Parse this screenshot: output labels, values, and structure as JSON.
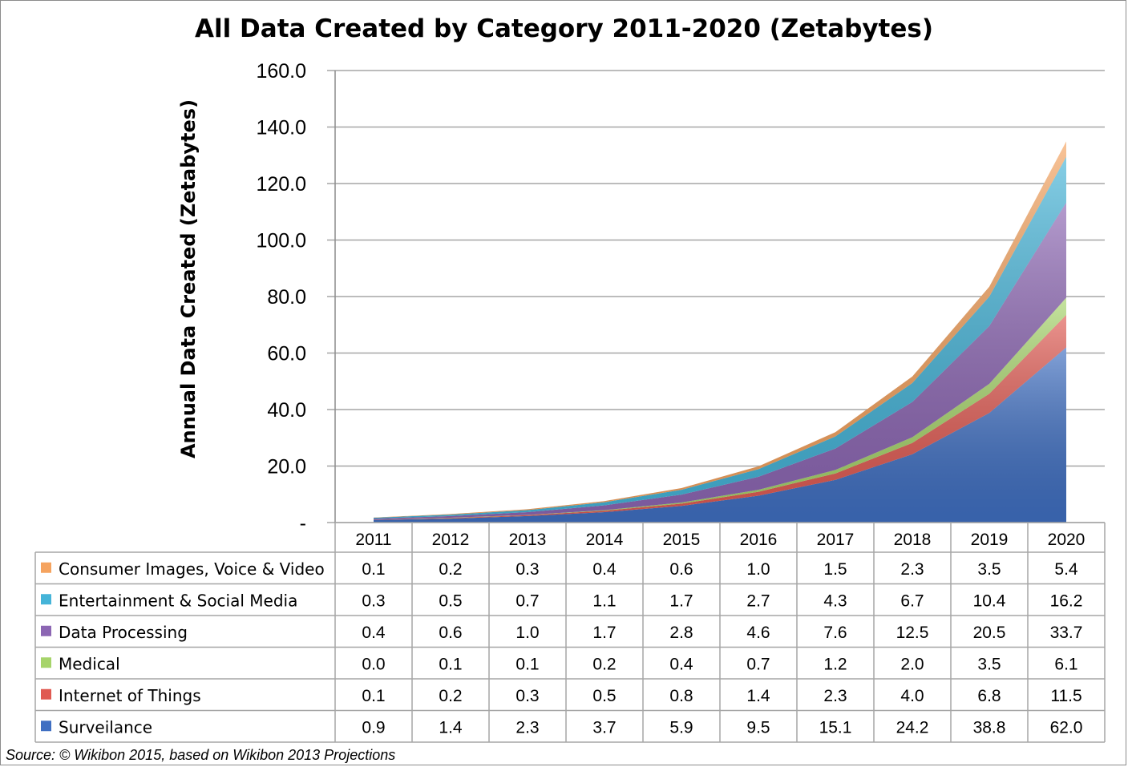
{
  "chart_data": {
    "type": "area",
    "stacked": true,
    "title": "All Data Created by Category 2011-2020 (Zetabytes)",
    "ylabel": "Annual Data Created (Zetabytes)",
    "xlabel": "",
    "categories": [
      "2011",
      "2012",
      "2013",
      "2014",
      "2015",
      "2016",
      "2017",
      "2018",
      "2019",
      "2020"
    ],
    "ylim": [
      0,
      160
    ],
    "yticks": [
      "-",
      "20.0",
      "40.0",
      "60.0",
      "80.0",
      "100.0",
      "120.0",
      "140.0",
      "160.0"
    ],
    "grid": true,
    "legend": "data-table",
    "series": [
      {
        "name": "Surveilance",
        "color": "#3f6fc2",
        "values": [
          0.9,
          1.4,
          2.3,
          3.7,
          5.9,
          9.5,
          15.1,
          24.2,
          38.8,
          62.0
        ],
        "labels": [
          "0.9",
          "1.4",
          "2.3",
          "3.7",
          "5.9",
          "9.5",
          "15.1",
          "24.2",
          "38.8",
          "62.0"
        ]
      },
      {
        "name": "Internet of Things",
        "color": "#e05a52",
        "values": [
          0.1,
          0.2,
          0.3,
          0.5,
          0.8,
          1.4,
          2.3,
          4.0,
          6.8,
          11.5
        ],
        "labels": [
          "0.1",
          "0.2",
          "0.3",
          "0.5",
          "0.8",
          "1.4",
          "2.3",
          "4.0",
          "6.8",
          "11.5"
        ]
      },
      {
        "name": "Medical",
        "color": "#a6d46a",
        "values": [
          0.0,
          0.1,
          0.1,
          0.2,
          0.4,
          0.7,
          1.2,
          2.0,
          3.5,
          6.1
        ],
        "labels": [
          "0.0",
          "0.1",
          "0.1",
          "0.2",
          "0.4",
          "0.7",
          "1.2",
          "2.0",
          "3.5",
          "6.1"
        ]
      },
      {
        "name": "Data Processing",
        "color": "#8c66b3",
        "values": [
          0.4,
          0.6,
          1.0,
          1.7,
          2.8,
          4.6,
          7.6,
          12.5,
          20.5,
          33.7
        ],
        "labels": [
          "0.4",
          "0.6",
          "1.0",
          "1.7",
          "2.8",
          "4.6",
          "7.6",
          "12.5",
          "20.5",
          "33.7"
        ]
      },
      {
        "name": "Entertainment & Social Media",
        "color": "#45b4d8",
        "values": [
          0.3,
          0.5,
          0.7,
          1.1,
          1.7,
          2.7,
          4.3,
          6.7,
          10.4,
          16.2
        ],
        "labels": [
          "0.3",
          "0.5",
          "0.7",
          "1.1",
          "1.7",
          "2.7",
          "4.3",
          "6.7",
          "10.4",
          "16.2"
        ]
      },
      {
        "name": "Consumer Images, Voice & Video",
        "color": "#f5a35f",
        "values": [
          0.1,
          0.2,
          0.3,
          0.4,
          0.6,
          1.0,
          1.5,
          2.3,
          3.5,
          5.4
        ],
        "labels": [
          "0.1",
          "0.2",
          "0.3",
          "0.4",
          "0.6",
          "1.0",
          "1.5",
          "2.3",
          "3.5",
          "5.4"
        ]
      }
    ],
    "table_row_order": [
      "Consumer Images, Voice & Video",
      "Entertainment & Social Media",
      "Data Processing",
      "Medical",
      "Internet of Things",
      "Surveilance"
    ],
    "source": "Source: © Wikibon 2015, based on Wikibon 2013 Projections"
  }
}
